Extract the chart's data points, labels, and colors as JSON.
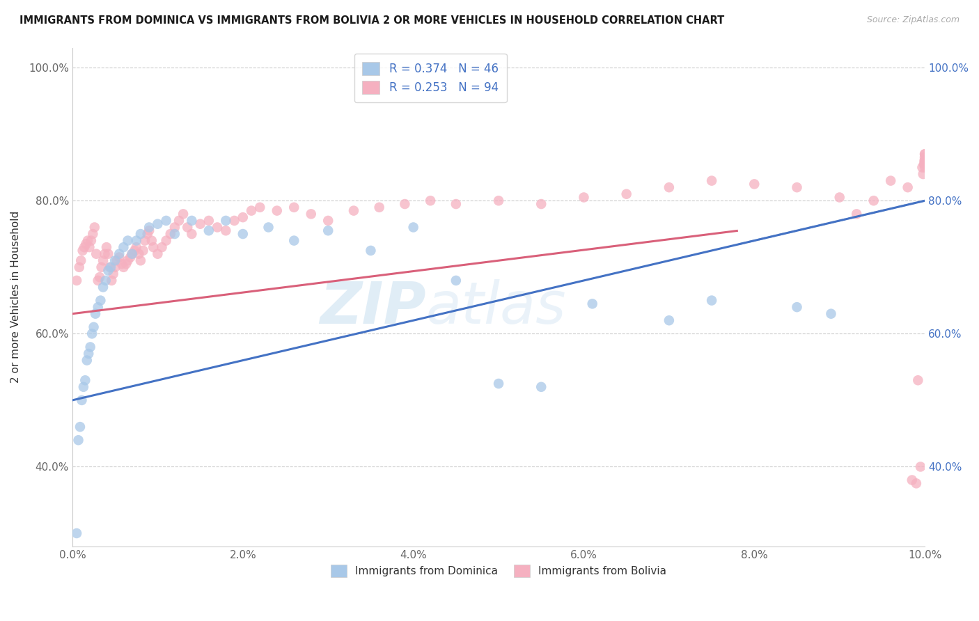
{
  "title": "IMMIGRANTS FROM DOMINICA VS IMMIGRANTS FROM BOLIVIA 2 OR MORE VEHICLES IN HOUSEHOLD CORRELATION CHART",
  "source": "Source: ZipAtlas.com",
  "ylabel": "2 or more Vehicles in Household",
  "xlim_pct": [
    0.0,
    10.0
  ],
  "ylim_pct": [
    28.0,
    103.0
  ],
  "xtick_vals": [
    0.0,
    2.0,
    4.0,
    6.0,
    8.0,
    10.0
  ],
  "xtick_labels": [
    "0.0%",
    "2.0%",
    "4.0%",
    "6.0%",
    "8.0%",
    "10.0%"
  ],
  "ytick_vals": [
    40.0,
    60.0,
    80.0,
    100.0
  ],
  "ytick_labels": [
    "40.0%",
    "60.0%",
    "80.0%",
    "100.0%"
  ],
  "dominica_R": 0.374,
  "dominica_N": 46,
  "bolivia_R": 0.253,
  "bolivia_N": 94,
  "dominica_scatter_color": "#a8c8e8",
  "bolivia_scatter_color": "#f5b0c0",
  "dominica_line_color": "#4472c4",
  "bolivia_line_color": "#d9607a",
  "dashed_line_color": "#9bbbd4",
  "legend_label_1": "Immigrants from Dominica",
  "legend_label_2": "Immigrants from Bolivia",
  "dom_trend_x0": 0.0,
  "dom_trend_y0": 50.0,
  "dom_trend_x1": 10.0,
  "dom_trend_y1": 80.0,
  "bol_trend_x0": 0.0,
  "bol_trend_y0": 63.0,
  "bol_trend_x1": 10.0,
  "bol_trend_y1": 79.0,
  "dashed_start_x": 7.8,
  "dominica_x": [
    0.05,
    0.07,
    0.09,
    0.11,
    0.13,
    0.15,
    0.17,
    0.19,
    0.21,
    0.23,
    0.25,
    0.27,
    0.3,
    0.33,
    0.36,
    0.39,
    0.42,
    0.45,
    0.5,
    0.55,
    0.6,
    0.65,
    0.7,
    0.75,
    0.8,
    0.9,
    1.0,
    1.1,
    1.2,
    1.4,
    1.6,
    1.8,
    2.0,
    2.3,
    2.6,
    3.0,
    3.5,
    4.0,
    4.5,
    5.0,
    5.5,
    6.1,
    7.0,
    7.5,
    8.5,
    8.9
  ],
  "dominica_y": [
    30.0,
    44.0,
    46.0,
    50.0,
    52.0,
    53.0,
    56.0,
    57.0,
    58.0,
    60.0,
    61.0,
    63.0,
    64.0,
    65.0,
    67.0,
    68.0,
    69.5,
    70.0,
    71.0,
    72.0,
    73.0,
    74.0,
    72.0,
    74.0,
    75.0,
    76.0,
    76.5,
    77.0,
    75.0,
    77.0,
    75.5,
    77.0,
    75.0,
    76.0,
    74.0,
    75.5,
    72.5,
    76.0,
    68.0,
    52.5,
    52.0,
    64.5,
    62.0,
    65.0,
    64.0,
    63.0
  ],
  "bolivia_x": [
    0.05,
    0.08,
    0.1,
    0.12,
    0.14,
    0.16,
    0.18,
    0.2,
    0.22,
    0.24,
    0.26,
    0.28,
    0.3,
    0.32,
    0.34,
    0.36,
    0.38,
    0.4,
    0.42,
    0.44,
    0.46,
    0.48,
    0.5,
    0.52,
    0.55,
    0.58,
    0.6,
    0.63,
    0.65,
    0.68,
    0.7,
    0.73,
    0.75,
    0.78,
    0.8,
    0.83,
    0.85,
    0.88,
    0.9,
    0.93,
    0.95,
    1.0,
    1.05,
    1.1,
    1.15,
    1.2,
    1.25,
    1.3,
    1.35,
    1.4,
    1.5,
    1.6,
    1.7,
    1.8,
    1.9,
    2.0,
    2.1,
    2.2,
    2.4,
    2.6,
    2.8,
    3.0,
    3.3,
    3.6,
    3.9,
    4.2,
    4.5,
    5.0,
    5.5,
    6.0,
    6.5,
    7.0,
    7.5,
    8.0,
    8.5,
    9.0,
    9.2,
    9.4,
    9.6,
    9.8,
    9.85,
    9.9,
    9.92,
    9.95,
    9.97,
    9.98,
    9.99,
    9.995,
    9.998,
    9.999,
    9.9995,
    9.9999,
    9.99999,
    9.999999
  ],
  "bolivia_y": [
    68.0,
    70.0,
    71.0,
    72.5,
    73.0,
    73.5,
    74.0,
    73.0,
    74.0,
    75.0,
    76.0,
    72.0,
    68.0,
    68.5,
    70.0,
    71.0,
    72.0,
    73.0,
    72.0,
    70.0,
    68.0,
    69.0,
    70.0,
    71.0,
    71.5,
    70.5,
    70.0,
    70.5,
    71.0,
    71.5,
    72.0,
    72.5,
    73.0,
    72.0,
    71.0,
    72.5,
    74.0,
    75.0,
    75.5,
    74.0,
    73.0,
    72.0,
    73.0,
    74.0,
    75.0,
    76.0,
    77.0,
    78.0,
    76.0,
    75.0,
    76.5,
    77.0,
    76.0,
    75.5,
    77.0,
    77.5,
    78.5,
    79.0,
    78.5,
    79.0,
    78.0,
    77.0,
    78.5,
    79.0,
    79.5,
    80.0,
    79.5,
    80.0,
    79.5,
    80.5,
    81.0,
    82.0,
    83.0,
    82.5,
    82.0,
    80.5,
    78.0,
    80.0,
    83.0,
    82.0,
    38.0,
    37.5,
    53.0,
    40.0,
    85.0,
    84.0,
    85.5,
    86.0,
    85.5,
    86.5,
    87.0,
    85.0,
    86.0,
    87.0
  ]
}
